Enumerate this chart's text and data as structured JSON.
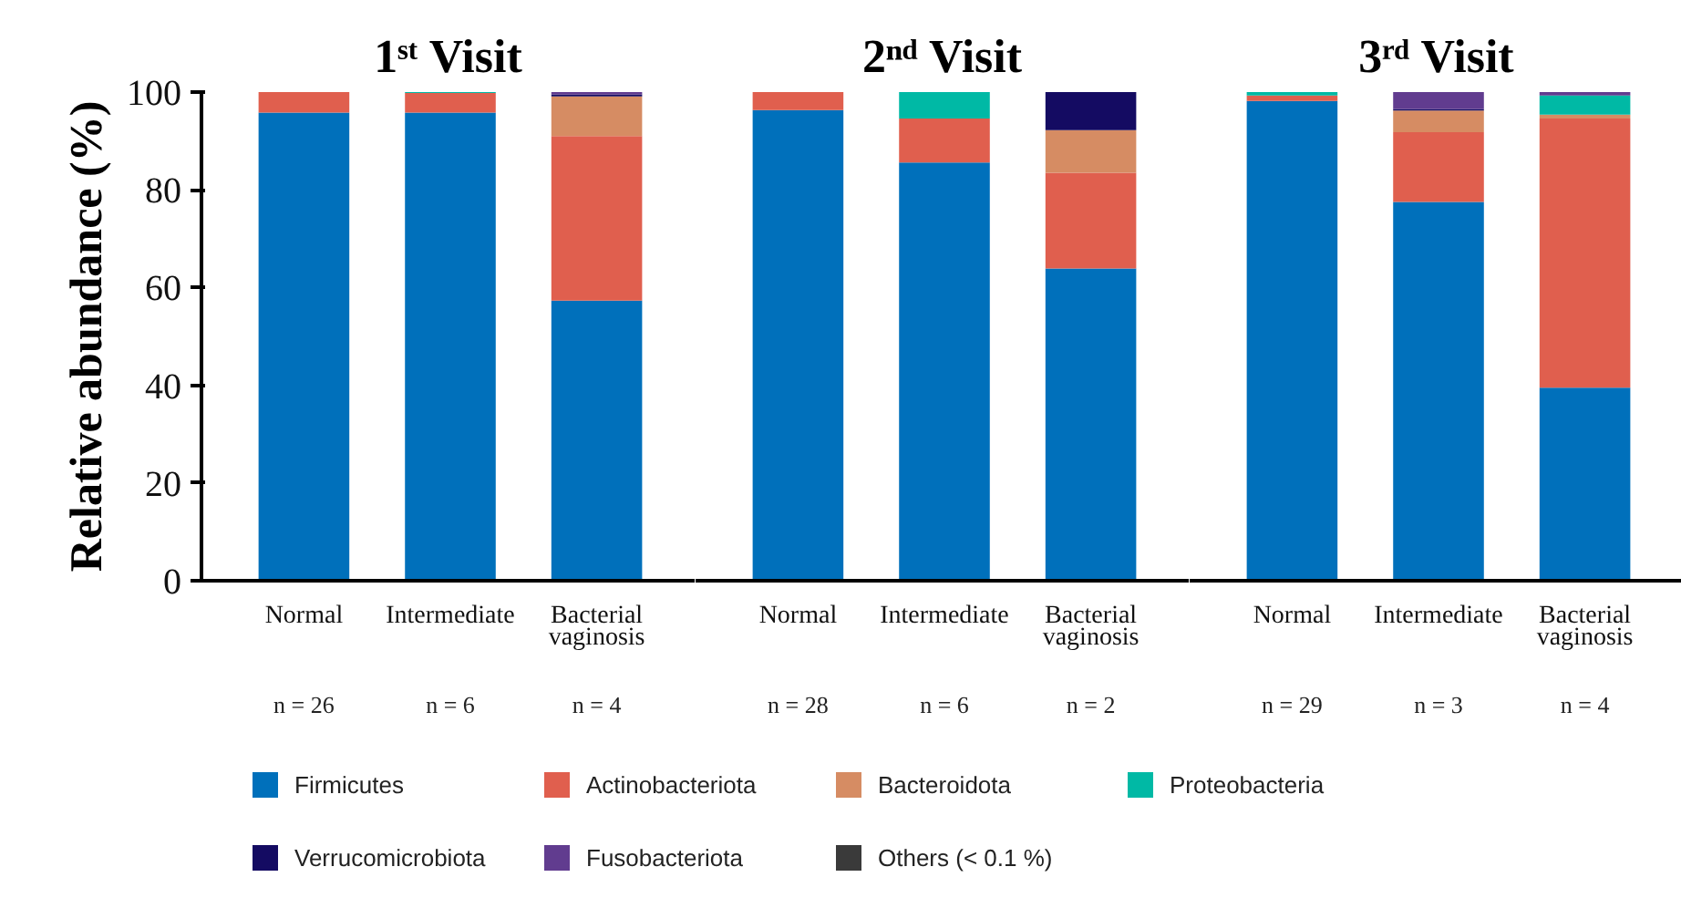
{
  "chart_data": [
    {
      "type": "bar",
      "title": "1ˢᵗ Visit",
      "ylabel": "Relative abundance (%)",
      "stacked": true,
      "legend": "bottom",
      "grid": false,
      "ylim": [
        0,
        100
      ],
      "yticks": [
        0,
        20,
        40,
        60,
        80,
        100
      ],
      "categories": [
        "Normal",
        "Intermediate",
        "Bacterial vaginosis"
      ],
      "annotations": [
        "n = 26",
        "n = 6",
        "n = 4"
      ],
      "series": [
        {
          "name": "Firmicutes",
          "color": "#0070bb",
          "values": [
            95.8,
            95.8,
            57.3
          ]
        },
        {
          "name": "Actinobacteriota",
          "color": "#e05f4e",
          "values": [
            4.2,
            4.0,
            33.7
          ]
        },
        {
          "name": "Bacteroidota",
          "color": "#d68c63",
          "values": [
            0,
            0,
            8.1
          ]
        },
        {
          "name": "Proteobacteria",
          "color": "#00b9a5",
          "values": [
            0,
            0.2,
            0
          ]
        },
        {
          "name": "Verrucomicrobiota",
          "color": "#140b62",
          "values": [
            0,
            0,
            0.4
          ]
        },
        {
          "name": "Fusobacteriota",
          "color": "#613c8f",
          "values": [
            0,
            0,
            0.5
          ]
        },
        {
          "name": "Others (< 0.1 %)",
          "color": "#3a3a3a",
          "values": [
            0,
            0,
            0
          ]
        }
      ]
    },
    {
      "type": "bar",
      "title": "2ⁿᵈ Visit",
      "stacked": true,
      "legend": false,
      "grid": false,
      "tick_labels": "x",
      "ylim": [
        0,
        100
      ],
      "categories": [
        "Normal",
        "Intermediate",
        "Bacterial vaginosis"
      ],
      "annotations": [
        "n = 28",
        "n = 6",
        "n = 2"
      ],
      "series": [
        {
          "color": "#0070bb",
          "values": [
            96.3,
            85.6,
            63.9
          ]
        },
        {
          "color": "#e05f4e",
          "values": [
            3.7,
            9.0,
            19.6
          ]
        },
        {
          "color": "#d68c63",
          "values": [
            0,
            0,
            8.7
          ]
        },
        {
          "color": "#00b9a5",
          "values": [
            0,
            5.4,
            0
          ]
        },
        {
          "color": "#140b62",
          "values": [
            0,
            0,
            7.8
          ]
        },
        {
          "color": "#613c8f",
          "values": [
            0,
            0,
            0
          ]
        },
        {
          "color": "#3a3a3a",
          "values": [
            0,
            0,
            0
          ]
        }
      ]
    },
    {
      "type": "bar",
      "title": "3ʳᵈ Visit",
      "stacked": true,
      "legend": false,
      "grid": false,
      "tick_labels": "x",
      "ylim": [
        0,
        100
      ],
      "categories": [
        "Normal",
        "Intermediate",
        "Bacterial vaginosis"
      ],
      "annotations": [
        "n = 29",
        "n = 3",
        "n = 4"
      ],
      "series": [
        {
          "color": "#0070bb",
          "values": [
            98.2,
            77.5,
            39.5
          ]
        },
        {
          "color": "#e05f4e",
          "values": [
            1.1,
            14.3,
            55.1
          ]
        },
        {
          "color": "#d68c63",
          "values": [
            0,
            4.4,
            0.8
          ]
        },
        {
          "color": "#00b9a5",
          "values": [
            0.7,
            0,
            3.9
          ]
        },
        {
          "color": "#140b62",
          "values": [
            0,
            0.3,
            0
          ]
        },
        {
          "color": "#613c8f",
          "values": [
            0,
            3.5,
            0.7
          ]
        },
        {
          "color": "#3a3a3a",
          "values": [
            0,
            0,
            0
          ]
        }
      ]
    }
  ]
}
